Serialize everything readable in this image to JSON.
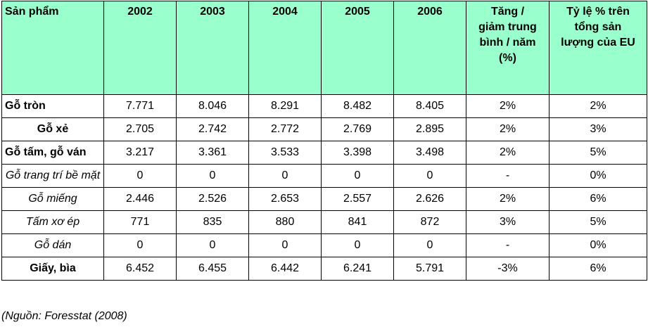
{
  "header": {
    "product": "Sản phẩm",
    "years": [
      "2002",
      "2003",
      "2004",
      "2005",
      "2006"
    ],
    "avg_change": [
      "Tăng /",
      "giảm trung",
      "bình / năm",
      "(%)"
    ],
    "eu_share": [
      "Tỷ lệ % trên",
      "tổng sản",
      "lượng của EU"
    ]
  },
  "rows": [
    {
      "name": "Gỗ tròn",
      "style": "bold",
      "values": [
        "7.771",
        "8.046",
        "8.291",
        "8.482",
        "8.405"
      ],
      "change": "2%",
      "share": "2%"
    },
    {
      "name": "Gỗ xẻ",
      "style": "bold-center",
      "values": [
        "2.705",
        "2.742",
        "2.772",
        "2.769",
        "2.895"
      ],
      "change": "2%",
      "share": "3%"
    },
    {
      "name": "Gỗ tấm, gỗ ván",
      "style": "bold",
      "values": [
        "3.217",
        "3.361",
        "3.533",
        "3.398",
        "3.498"
      ],
      "change": "2%",
      "share": "5%"
    },
    {
      "name": "Gỗ trang trí bề mặt",
      "style": "italic-center",
      "values": [
        "0",
        "0",
        "0",
        "0",
        "0"
      ],
      "change": "-",
      "share": "0%"
    },
    {
      "name": "Gỗ miếng",
      "style": "italic-center",
      "values": [
        "2.446",
        "2.526",
        "2.653",
        "2.557",
        "2.626"
      ],
      "change": "2%",
      "share": "6%"
    },
    {
      "name": "Tấm xơ ép",
      "style": "italic-center",
      "values": [
        "771",
        "835",
        "880",
        "841",
        "872"
      ],
      "change": "3%",
      "share": "5%"
    },
    {
      "name": "Gỗ dán",
      "style": "italic-center",
      "values": [
        "0",
        "0",
        "0",
        "0",
        "0"
      ],
      "change": "-",
      "share": "0%"
    },
    {
      "name": "Giấy, bìa",
      "style": "bold-center",
      "values": [
        "6.452",
        "6.455",
        "6.442",
        "6.241",
        "5.791"
      ],
      "change": "-3%",
      "share": "6%"
    }
  ],
  "source": "(Nguồn: Foresstat (2008)"
}
